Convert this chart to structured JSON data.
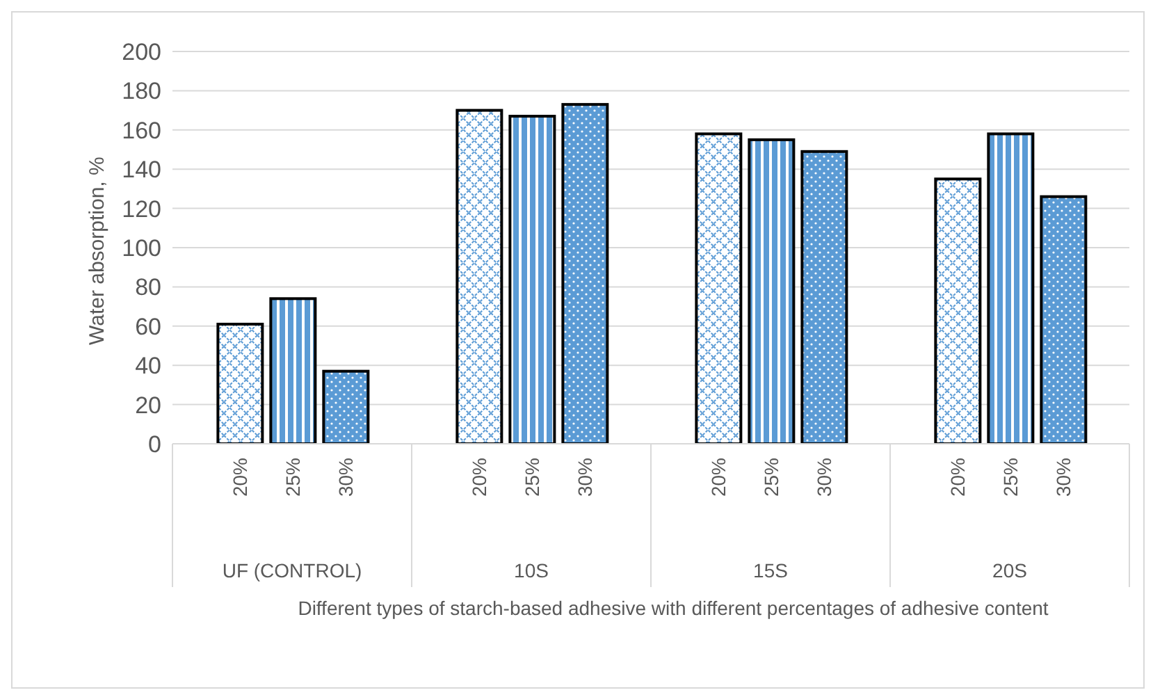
{
  "chart_data": {
    "type": "bar",
    "categories": [
      "UF (CONTROL)",
      "10S",
      "15S",
      "20S"
    ],
    "series": [
      {
        "name": "20%",
        "color": "#5b9bd5",
        "values": [
          61,
          170,
          158,
          135
        ]
      },
      {
        "name": "25%",
        "color": "#5b9bd5",
        "values": [
          74,
          167,
          155,
          158
        ]
      },
      {
        "name": "30%",
        "color": "#5b9bd5",
        "values": [
          37,
          173,
          149,
          126
        ]
      }
    ],
    "xlabel": "Different types of starch-based adhesive with different percentages of adhesive content",
    "ylabel": "Water absorption, %",
    "ylim": [
      0,
      200
    ],
    "yticks": [
      0,
      20,
      40,
      60,
      80,
      100,
      120,
      140,
      160,
      180,
      200
    ],
    "grid": "y",
    "legend": false
  }
}
